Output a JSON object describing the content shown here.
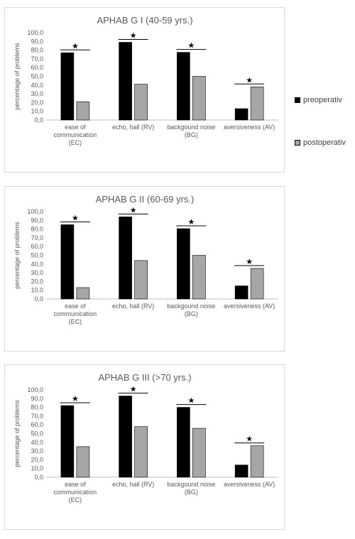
{
  "legend": [
    {
      "label": "preoperativ",
      "color": "#000000"
    },
    {
      "label": "postoperativ",
      "color": "#a6a6a6"
    }
  ],
  "chart_data": [
    {
      "type": "bar",
      "title": "APHAB G I (40-59 yrs.)",
      "ylabel": "percentage of problems",
      "ylim": [
        0,
        100
      ],
      "yticks": [
        "0,0",
        "10,0",
        "20,0",
        "30,0",
        "40,0",
        "50,0",
        "60,0",
        "70,0",
        "80,0",
        "90,0",
        "100,0"
      ],
      "categories": [
        [
          "ease of",
          "communication",
          "(EC)"
        ],
        [
          "echo, hall (RV)"
        ],
        [
          "backgound noise",
          "(BG)"
        ],
        [
          "aversiveness (AV)"
        ]
      ],
      "series": [
        {
          "name": "preoperativ",
          "color": "#000000",
          "values": [
            77,
            89,
            77.5,
            13
          ]
        },
        {
          "name": "postoperativ",
          "color": "#a6a6a6",
          "values": [
            21,
            41,
            50,
            38
          ]
        }
      ],
      "significance_marker": "★",
      "significant": [
        true,
        true,
        true,
        true
      ]
    },
    {
      "type": "bar",
      "title": "APHAB G II (60-69 yrs.)",
      "ylabel": "percentage of problems",
      "ylim": [
        0,
        100
      ],
      "yticks": [
        "0,0",
        "10,0",
        "20,0",
        "30,0",
        "40,0",
        "50,0",
        "60,0",
        "70,0",
        "80,0",
        "90,0",
        "100,0"
      ],
      "categories": [
        [
          "ease of",
          "communication",
          "(EC)"
        ],
        [
          "echo, hall (RV)"
        ],
        [
          "backgound noise",
          "(BG)"
        ],
        [
          "aversiveness (AV)"
        ]
      ],
      "series": [
        {
          "name": "preoperativ",
          "color": "#000000",
          "values": [
            85,
            94,
            80.5,
            15
          ]
        },
        {
          "name": "postoperativ",
          "color": "#a6a6a6",
          "values": [
            13,
            44,
            50,
            35
          ]
        }
      ],
      "significance_marker": "★",
      "significant": [
        true,
        true,
        true,
        true
      ]
    },
    {
      "type": "bar",
      "title": "APHAB G III (>70 yrs.)",
      "ylabel": "percentage of problems",
      "ylim": [
        0,
        100
      ],
      "yticks": [
        "0,0",
        "10,0",
        "20,0",
        "30,0",
        "40,0",
        "50,0",
        "60,0",
        "70,0",
        "80,0",
        "90,0",
        "100,0"
      ],
      "categories": [
        [
          "ease of",
          "communication",
          "(EC)"
        ],
        [
          "echo, hall (RV)"
        ],
        [
          "backgound noise",
          "(BG)"
        ],
        [
          "aversiveness (AV)"
        ]
      ],
      "series": [
        {
          "name": "preoperativ",
          "color": "#000000",
          "values": [
            82,
            93,
            80,
            14
          ]
        },
        {
          "name": "postoperativ",
          "color": "#a6a6a6",
          "values": [
            35,
            58,
            56,
            36
          ]
        }
      ],
      "significance_marker": "★",
      "significant": [
        true,
        true,
        true,
        true
      ]
    }
  ]
}
